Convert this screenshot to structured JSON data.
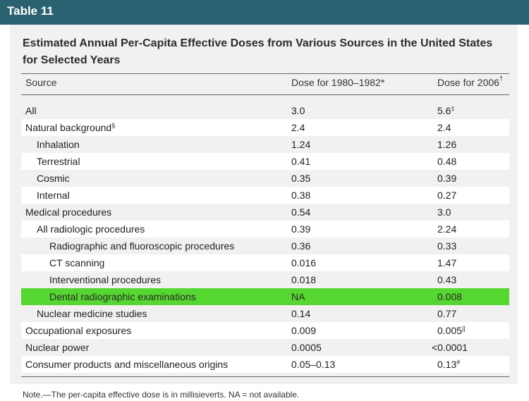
{
  "table_label": "Table 11",
  "title": "Estimated Annual Per-Capita Effective Doses from Various Sources in the United States for Selected Years",
  "columns": {
    "source": "Source",
    "dose_1980": "Dose for 1980–1982*",
    "dose_2006": "Dose for 2006",
    "dose_2006_mark": "†"
  },
  "rows": [
    {
      "source": "All",
      "d1": "3.0",
      "d2": "5.6",
      "d2_mark": "‡"
    },
    {
      "source": "Natural background",
      "source_mark": "§",
      "d1": "2.4",
      "d2": "2.4"
    },
    {
      "source": "Inhalation",
      "d1": "1.24",
      "d2": "1.26"
    },
    {
      "source": "Terrestrial",
      "d1": "0.41",
      "d2": "0.48"
    },
    {
      "source": "Cosmic",
      "d1": "0.35",
      "d2": "0.39"
    },
    {
      "source": "Internal",
      "d1": "0.38",
      "d2": "0.27"
    },
    {
      "source": "Medical procedures",
      "d1": "0.54",
      "d2": "3.0"
    },
    {
      "source": "All radiologic procedures",
      "d1": "0.39",
      "d2": "2.24"
    },
    {
      "source": "Radiographic and fluoroscopic procedures",
      "d1": "0.36",
      "d2": "0.33"
    },
    {
      "source": "CT scanning",
      "d1": "0.016",
      "d2": "1.47"
    },
    {
      "source": "Interventional procedures",
      "d1": "0.018",
      "d2": "0.43"
    },
    {
      "source": "Dental radiographic examinations",
      "d1": "NA",
      "d2": "0.008"
    },
    {
      "source": "Nuclear medicine studies",
      "d1": "0.14",
      "d2": "0.77"
    },
    {
      "source": "Occupational exposures",
      "d1": "0.009",
      "d2": "0.005",
      "d2_mark": "||"
    },
    {
      "source": "Nuclear power",
      "d1": "0.0005",
      "d2": "<0.0001"
    },
    {
      "source": "Consumer products and miscellaneous origins",
      "d1": "0.05–0.13",
      "d2": "0.13",
      "d2_mark": "#"
    }
  ],
  "note": "Note.—The per-capita effective dose is in millisieverts. NA = not available.",
  "colors": {
    "header_bar": "#2b6272",
    "highlight_row": "#55d630"
  }
}
